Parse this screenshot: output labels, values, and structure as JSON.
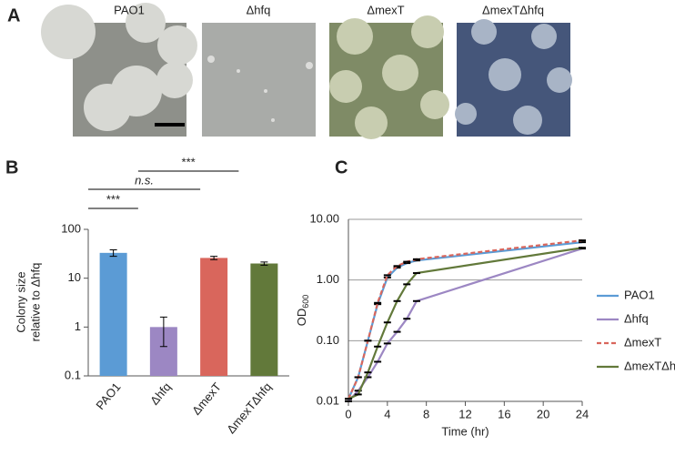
{
  "panels": {
    "A": {
      "label": "A",
      "image_titles": [
        "PAO1",
        "Δhfq",
        "ΔmexT",
        "ΔmexTΔhfq"
      ]
    }
  },
  "chart_data": [
    {
      "type": "bar",
      "panel_label": "B",
      "ylabel": [
        "Colony size",
        "relative to Δhfq"
      ],
      "categories": [
        "PAO1",
        "Δhfq",
        "ΔmexT",
        "ΔmexTΔhfq"
      ],
      "values": [
        33,
        1,
        26,
        20
      ],
      "errors": [
        5,
        0.6,
        2,
        1.5
      ],
      "colors": [
        "#5b9bd5",
        "#9c87c3",
        "#d9665c",
        "#62793a"
      ],
      "log_scale": true,
      "ylim": [
        0.1,
        100
      ],
      "yticks": [
        0.1,
        1,
        10,
        100
      ],
      "annotations": [
        "n.s.",
        "***",
        "***"
      ]
    },
    {
      "type": "line",
      "panel_label": "C",
      "xlabel": "Time (hr)",
      "ylabel": "OD",
      "ylabel_sub": "600",
      "x": [
        0,
        1,
        2,
        3,
        4,
        5,
        6,
        7,
        24
      ],
      "series": [
        {
          "name": "PAO1",
          "color": "#5b9bd5",
          "dashed": false,
          "values": [
            0.011,
            0.025,
            0.1,
            0.4,
            1.1,
            1.6,
            1.9,
            2.1,
            4.2
          ]
        },
        {
          "name": "Δhfq",
          "color": "#9c87c3",
          "dashed": false,
          "values": [
            0.01,
            0.015,
            0.025,
            0.045,
            0.09,
            0.14,
            0.23,
            0.45,
            3.3
          ]
        },
        {
          "name": "ΔmexT",
          "color": "#d9665c",
          "dashed": true,
          "values": [
            0.011,
            0.025,
            0.1,
            0.42,
            1.2,
            1.7,
            2.0,
            2.2,
            4.5
          ]
        },
        {
          "name": "ΔmexTΔhfq",
          "color": "#62793a",
          "dashed": false,
          "values": [
            0.011,
            0.013,
            0.03,
            0.08,
            0.2,
            0.45,
            0.85,
            1.3,
            3.4
          ]
        }
      ],
      "log_scale": true,
      "grid": true,
      "xlim": [
        0,
        24
      ],
      "xticks": [
        0,
        4,
        8,
        12,
        16,
        20,
        24
      ],
      "ylim": [
        0.01,
        10
      ],
      "yticks": [
        {
          "value": 0.01,
          "label": "0.01"
        },
        {
          "value": 0.1,
          "label": "0.10"
        },
        {
          "value": 1,
          "label": "1.00"
        },
        {
          "value": 10,
          "label": "10.00"
        }
      ]
    }
  ]
}
